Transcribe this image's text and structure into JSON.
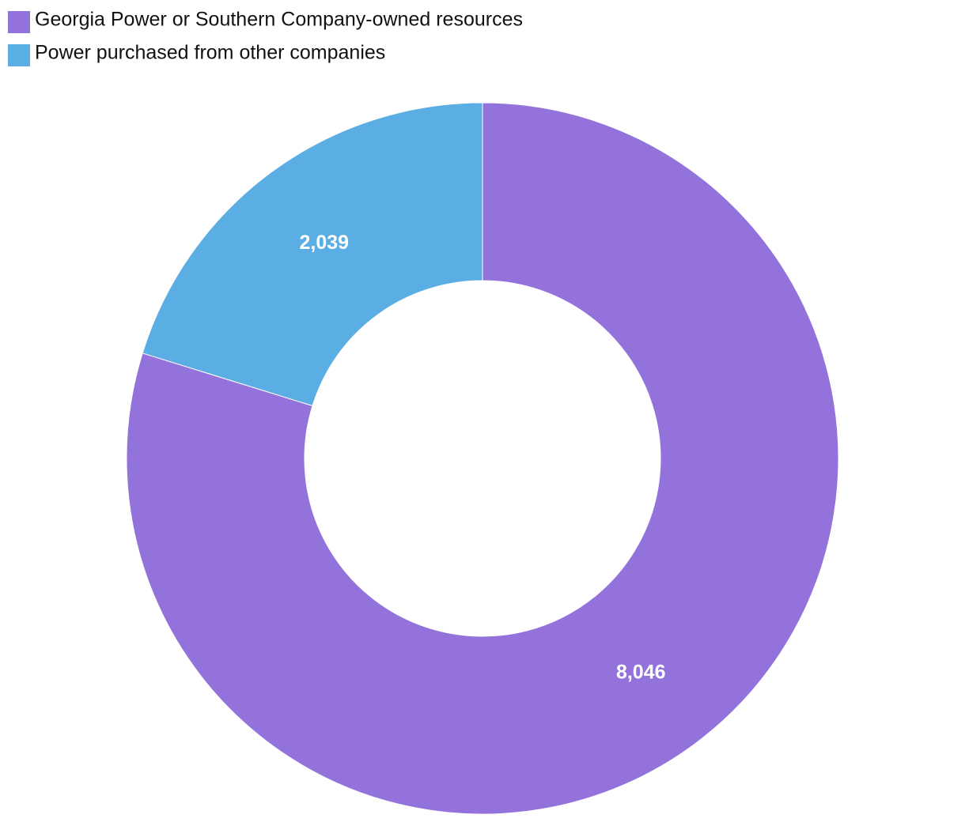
{
  "chart_data": {
    "type": "donut",
    "categories": [
      "Georgia Power or Southern Company-owned resources",
      "Power purchased from other companies"
    ],
    "values": [
      8046,
      2039
    ],
    "value_labels": [
      "8,046",
      "2,039"
    ],
    "colors": [
      "#9373db",
      "#5aaee3"
    ],
    "legend": "top-left"
  }
}
